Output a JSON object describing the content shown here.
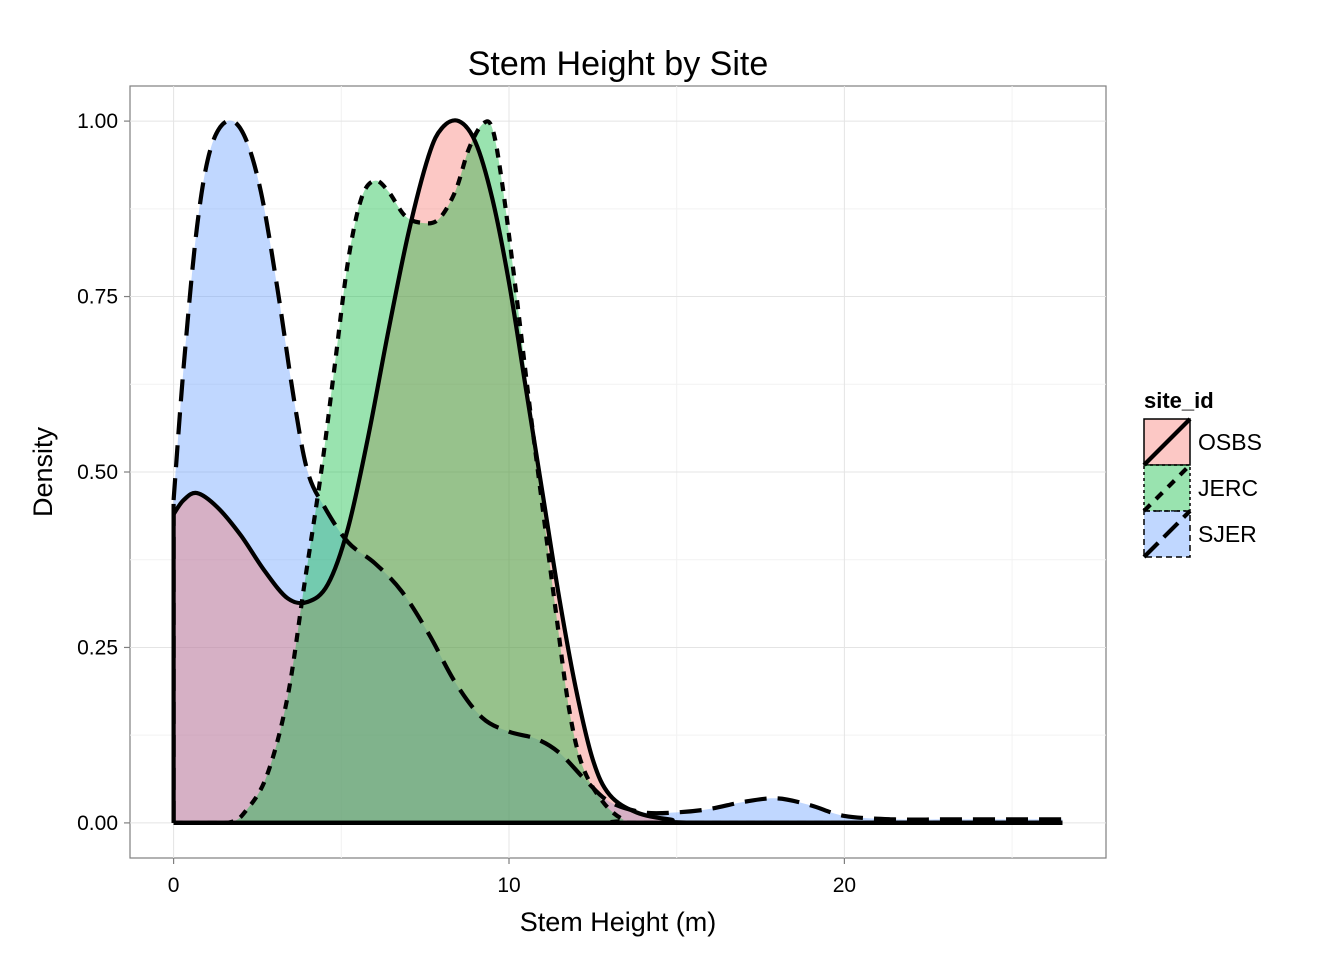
{
  "chart_data": {
    "type": "area",
    "title": "Stem Height by Site",
    "xlabel": "Stem Height (m)",
    "ylabel": "Density",
    "xlim": [
      -1.3,
      27.8
    ],
    "ylim": [
      -0.05,
      1.05
    ],
    "x_ticks": [
      0,
      10,
      20
    ],
    "x_tick_labels": [
      "0",
      "10",
      "20"
    ],
    "y_ticks": [
      0,
      0.25,
      0.5,
      0.75,
      1
    ],
    "y_tick_labels": [
      "0.00",
      "0.25",
      "0.50",
      "0.75",
      "1.00"
    ],
    "grid": true,
    "legend": {
      "title": "site_id",
      "position": "right",
      "entries": [
        {
          "name": "OSBS",
          "color": "#F8766D",
          "line": "solid"
        },
        {
          "name": "JERC",
          "color": "#00BA38",
          "line": "dotted"
        },
        {
          "name": "SJER",
          "color": "#619CFF",
          "line": "dashed"
        }
      ]
    },
    "series": [
      {
        "name": "SJER",
        "color": "#619CFF",
        "line": "dashed",
        "points": [
          [
            0,
            0.46
          ],
          [
            0.3,
            0.65
          ],
          [
            0.7,
            0.85
          ],
          [
            1.1,
            0.96
          ],
          [
            1.6,
            1.0
          ],
          [
            2.1,
            0.98
          ],
          [
            2.6,
            0.9
          ],
          [
            3.1,
            0.76
          ],
          [
            3.6,
            0.6
          ],
          [
            4.0,
            0.5
          ],
          [
            4.5,
            0.45
          ],
          [
            5.2,
            0.4
          ],
          [
            6.0,
            0.37
          ],
          [
            6.8,
            0.33
          ],
          [
            7.6,
            0.27
          ],
          [
            8.4,
            0.2
          ],
          [
            9.2,
            0.15
          ],
          [
            10.0,
            0.13
          ],
          [
            10.8,
            0.12
          ],
          [
            11.5,
            0.1
          ],
          [
            12.3,
            0.06
          ],
          [
            13.0,
            0.03
          ],
          [
            14.0,
            0.015
          ],
          [
            15.0,
            0.015
          ],
          [
            16.0,
            0.02
          ],
          [
            17.0,
            0.03
          ],
          [
            18.0,
            0.035
          ],
          [
            19.0,
            0.025
          ],
          [
            20.0,
            0.01
          ],
          [
            21.5,
            0.005
          ],
          [
            23.0,
            0.005
          ],
          [
            25.0,
            0.005
          ],
          [
            26.5,
            0.005
          ]
        ]
      },
      {
        "name": "OSBS",
        "color": "#F8766D",
        "line": "solid",
        "points": [
          [
            0,
            0.44
          ],
          [
            0.3,
            0.46
          ],
          [
            0.7,
            0.47
          ],
          [
            1.3,
            0.45
          ],
          [
            2.0,
            0.41
          ],
          [
            2.7,
            0.36
          ],
          [
            3.4,
            0.32
          ],
          [
            4.0,
            0.315
          ],
          [
            4.6,
            0.34
          ],
          [
            5.2,
            0.42
          ],
          [
            5.8,
            0.55
          ],
          [
            6.4,
            0.7
          ],
          [
            7.0,
            0.84
          ],
          [
            7.6,
            0.95
          ],
          [
            8.0,
            0.99
          ],
          [
            8.5,
            1.0
          ],
          [
            9.0,
            0.97
          ],
          [
            9.5,
            0.89
          ],
          [
            10.0,
            0.77
          ],
          [
            10.5,
            0.62
          ],
          [
            11.0,
            0.47
          ],
          [
            11.5,
            0.32
          ],
          [
            12.0,
            0.19
          ],
          [
            12.5,
            0.09
          ],
          [
            13.0,
            0.04
          ],
          [
            13.8,
            0.015
          ],
          [
            14.8,
            0.005
          ],
          [
            16.0,
            0.0
          ],
          [
            26.5,
            0.0
          ]
        ]
      },
      {
        "name": "JERC",
        "color": "#00BA38",
        "line": "dotted",
        "points": [
          [
            0,
            0.0
          ],
          [
            1.6,
            0.0
          ],
          [
            2.2,
            0.02
          ],
          [
            2.8,
            0.07
          ],
          [
            3.4,
            0.18
          ],
          [
            3.9,
            0.34
          ],
          [
            4.4,
            0.5
          ],
          [
            4.8,
            0.65
          ],
          [
            5.2,
            0.8
          ],
          [
            5.6,
            0.89
          ],
          [
            6.0,
            0.915
          ],
          [
            6.4,
            0.9
          ],
          [
            6.9,
            0.865
          ],
          [
            7.4,
            0.855
          ],
          [
            7.9,
            0.86
          ],
          [
            8.4,
            0.9
          ],
          [
            8.8,
            0.96
          ],
          [
            9.2,
            0.995
          ],
          [
            9.5,
            0.99
          ],
          [
            9.8,
            0.91
          ],
          [
            10.2,
            0.76
          ],
          [
            10.6,
            0.6
          ],
          [
            11.0,
            0.45
          ],
          [
            11.4,
            0.3
          ],
          [
            11.8,
            0.16
          ],
          [
            12.2,
            0.08
          ],
          [
            12.8,
            0.03
          ],
          [
            13.4,
            0.005
          ],
          [
            14.0,
            0.0
          ],
          [
            26.5,
            0.0
          ]
        ]
      }
    ]
  }
}
